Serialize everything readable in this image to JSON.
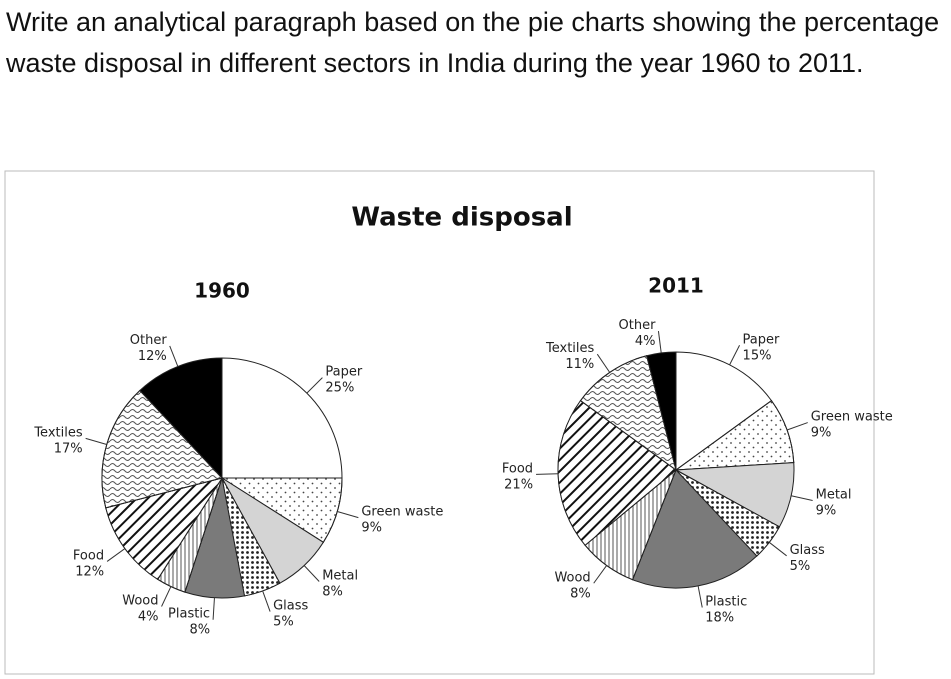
{
  "question": "Write an analytical paragraph based on the pie charts showing the percentage waste disposal in different sectors in India during the year 1960 to 2011.",
  "figure": {
    "title": "Waste disposal"
  },
  "chart_data": [
    {
      "type": "pie",
      "title": "1960",
      "categories": [
        "Paper",
        "Green waste",
        "Metal",
        "Glass",
        "Plastic",
        "Wood",
        "Food",
        "Textiles",
        "Other"
      ],
      "values": [
        25,
        9,
        8,
        5,
        8,
        4,
        12,
        17,
        12
      ],
      "value_labels": [
        "25%",
        "9%",
        "8%",
        "5%",
        "8%",
        "4%",
        "12%",
        "17%",
        "12%"
      ],
      "colors": [
        "#ffffff",
        "#ffffff",
        "#d4d4d4",
        "#bdbdbd",
        "#7a7a7a",
        "#ffffff",
        "#ffffff",
        "#ffffff",
        "#000000"
      ],
      "patterns": [
        "none",
        "dots",
        "none",
        "dense-dots",
        "none",
        "vstripe",
        "diag",
        "wave",
        "none"
      ]
    },
    {
      "type": "pie",
      "title": "2011",
      "categories": [
        "Paper",
        "Green waste",
        "Metal",
        "Glass",
        "Plastic",
        "Wood",
        "Food",
        "Textiles",
        "Other"
      ],
      "values": [
        15,
        9,
        9,
        5,
        18,
        8,
        21,
        11,
        4
      ],
      "value_labels": [
        "15%",
        "9%",
        "9%",
        "5%",
        "18%",
        "8%",
        "21%",
        "11%",
        "4%"
      ],
      "colors": [
        "#ffffff",
        "#ffffff",
        "#d4d4d4",
        "#bdbdbd",
        "#7a7a7a",
        "#ffffff",
        "#ffffff",
        "#ffffff",
        "#000000"
      ],
      "patterns": [
        "none",
        "dots",
        "none",
        "dense-dots",
        "none",
        "vstripe",
        "diag",
        "wave",
        "none"
      ]
    }
  ]
}
